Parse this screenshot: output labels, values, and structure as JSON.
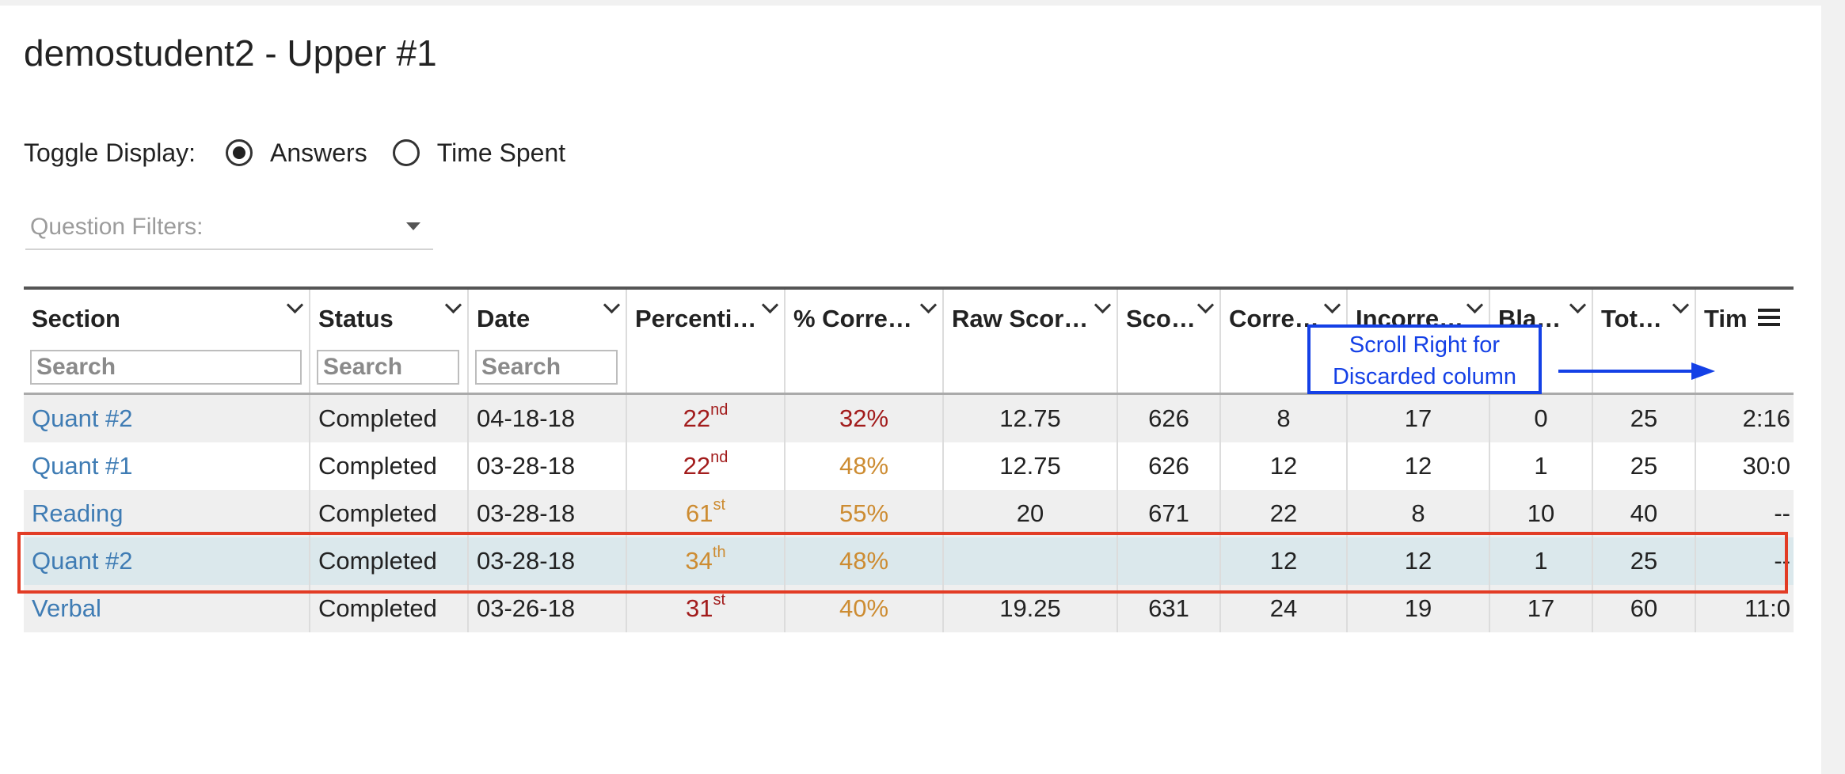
{
  "page": {
    "title": "demostudent2 - Upper #1"
  },
  "toggle": {
    "label": "Toggle Display:",
    "options": [
      {
        "label": "Answers",
        "selected": true
      },
      {
        "label": "Time Spent",
        "selected": false
      }
    ]
  },
  "filters": {
    "placeholder": "Question Filters:"
  },
  "table": {
    "columns": [
      "Section",
      "Status",
      "Date",
      "Percentil…",
      "% Correc…",
      "Raw Score…",
      "Scor…",
      "Correc…",
      "Incorre…",
      "Blan…",
      "Total…",
      "Tim"
    ],
    "search_placeholder": "Search",
    "rows": [
      {
        "section": "Quant #2",
        "status": "Completed",
        "date": "04-18-18",
        "percentile": "22",
        "percentile_suffix": "nd",
        "percentile_color": "red",
        "percent_correct": "32%",
        "percent_color": "red",
        "raw_score": "12.75",
        "score": "626",
        "correct": "8",
        "incorrect": "17",
        "blank": "0",
        "total": "25",
        "time": "2:16"
      },
      {
        "section": "Quant #1",
        "status": "Completed",
        "date": "03-28-18",
        "percentile": "22",
        "percentile_suffix": "nd",
        "percentile_color": "red",
        "percent_correct": "48%",
        "percent_color": "orange",
        "raw_score": "12.75",
        "score": "626",
        "correct": "12",
        "incorrect": "12",
        "blank": "1",
        "total": "25",
        "time": "30:0"
      },
      {
        "section": "Reading",
        "status": "Completed",
        "date": "03-28-18",
        "percentile": "61",
        "percentile_suffix": "st",
        "percentile_color": "orange",
        "percent_correct": "55%",
        "percent_color": "orange",
        "raw_score": "20",
        "score": "671",
        "correct": "22",
        "incorrect": "8",
        "blank": "10",
        "total": "40",
        "time": "--"
      },
      {
        "section": "Quant #2",
        "status": "Completed",
        "date": "03-28-18",
        "percentile": "34",
        "percentile_suffix": "th",
        "percentile_color": "orange",
        "percent_correct": "48%",
        "percent_color": "orange",
        "raw_score": "",
        "score": "",
        "correct": "12",
        "incorrect": "12",
        "blank": "1",
        "total": "25",
        "time": "--",
        "selected": true
      },
      {
        "section": "Verbal",
        "status": "Completed",
        "date": "03-26-18",
        "percentile": "31",
        "percentile_suffix": "st",
        "percentile_color": "red",
        "percent_correct": "40%",
        "percent_color": "orange",
        "raw_score": "19.25",
        "score": "631",
        "correct": "24",
        "incorrect": "19",
        "blank": "17",
        "total": "60",
        "time": "11:0"
      }
    ]
  },
  "annotation": {
    "callout_line1": "Scroll Right for",
    "callout_line2": "Discarded column"
  },
  "colors": {
    "link": "#3f7cb4",
    "percent_red": "#a21c1c",
    "percent_orange": "#cd8c32",
    "selected_row": "#dbe8ec",
    "highlight_border": "#e23c25",
    "callout_blue": "#1440e6"
  },
  "icons": {
    "column_menu": "chevron-down-icon",
    "table_menu": "hamburger-menu-icon",
    "filter_dropdown": "caret-down-icon"
  }
}
